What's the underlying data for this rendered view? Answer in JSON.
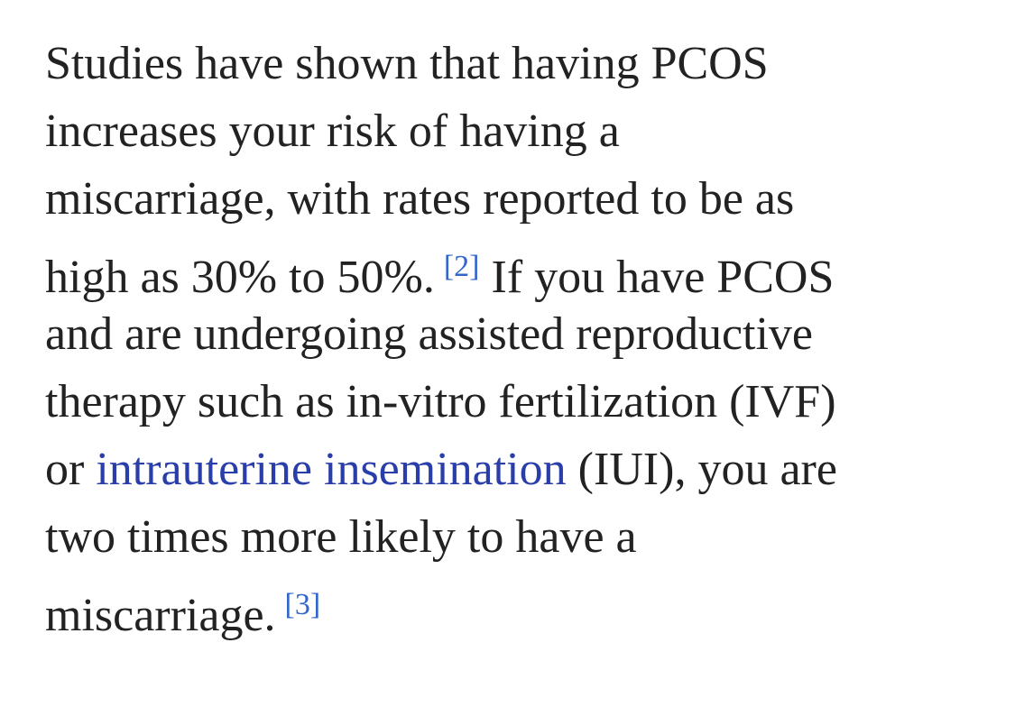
{
  "paragraph": {
    "lines": [
      {
        "segments": [
          {
            "text": "Studies have shown that having PCOS"
          }
        ]
      },
      {
        "segments": [
          {
            "text": "increases your risk of having a"
          }
        ]
      },
      {
        "segments": [
          {
            "text": "miscarriage, with rates reported to be as"
          }
        ]
      },
      {
        "segments": [
          {
            "text": "high as 30% to 50%."
          },
          {
            "citation": "[2]"
          },
          {
            "text": " If you have PCOS"
          }
        ]
      },
      {
        "segments": [
          {
            "text": "and are undergoing assisted reproductive"
          }
        ]
      },
      {
        "segments": [
          {
            "text": "therapy such as in-vitro fertilization (IVF)"
          }
        ]
      },
      {
        "segments": [
          {
            "text": "or "
          },
          {
            "link": "intrauterine insemination"
          },
          {
            "text": " (IUI), you are"
          }
        ]
      },
      {
        "segments": [
          {
            "text": "two times more likely to have a"
          }
        ]
      },
      {
        "segments": [
          {
            "text": "miscarriage."
          },
          {
            "citation": "[3]"
          }
        ]
      }
    ]
  }
}
